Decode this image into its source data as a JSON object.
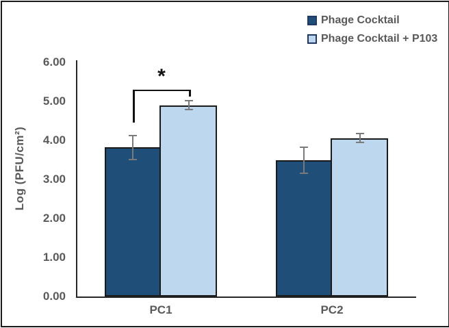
{
  "figure": {
    "type": "grouped-bar-chart",
    "background": "#ffffff",
    "border_color": "#1a1a1a"
  },
  "legend": {
    "position": "top-right",
    "text_color": "#595959",
    "items": [
      {
        "label": "Phage Cocktail",
        "color": "#1f4e79"
      },
      {
        "label": "Phage Cocktail + P103",
        "color": "#bdd7ee"
      }
    ]
  },
  "chart_data": {
    "type": "bar",
    "categories": [
      "PC1",
      "PC2"
    ],
    "series": [
      {
        "name": "Phage Cocktail",
        "color": "#1f4e79",
        "values": [
          3.82,
          3.49
        ],
        "errors": [
          0.31,
          0.33
        ]
      },
      {
        "name": "Phage Cocktail + P103",
        "color": "#bdd7ee",
        "values": [
          4.9,
          4.06
        ],
        "errors": [
          0.11,
          0.11
        ]
      }
    ],
    "title": "",
    "xlabel": "",
    "ylabel": "Log (PFU/cm²)",
    "ylim": [
      0,
      6
    ],
    "yticks": [
      "0.00",
      "1.00",
      "2.00",
      "3.00",
      "4.00",
      "5.00",
      "6.00"
    ],
    "grid": false,
    "legend_position": "top-right",
    "bar_border_color": "#1a1a1a",
    "error_bar_color": "#7a7a7a",
    "axis_color": "#262626",
    "tick_label_color": "#595959",
    "annotation": {
      "text": "*",
      "category": "PC1",
      "between_series": [
        0,
        1
      ],
      "bracket_y": 5.3,
      "bracket_left_drop_to": 4.45,
      "bracket_right_drop_to": 5.13,
      "color": "#111111"
    }
  }
}
